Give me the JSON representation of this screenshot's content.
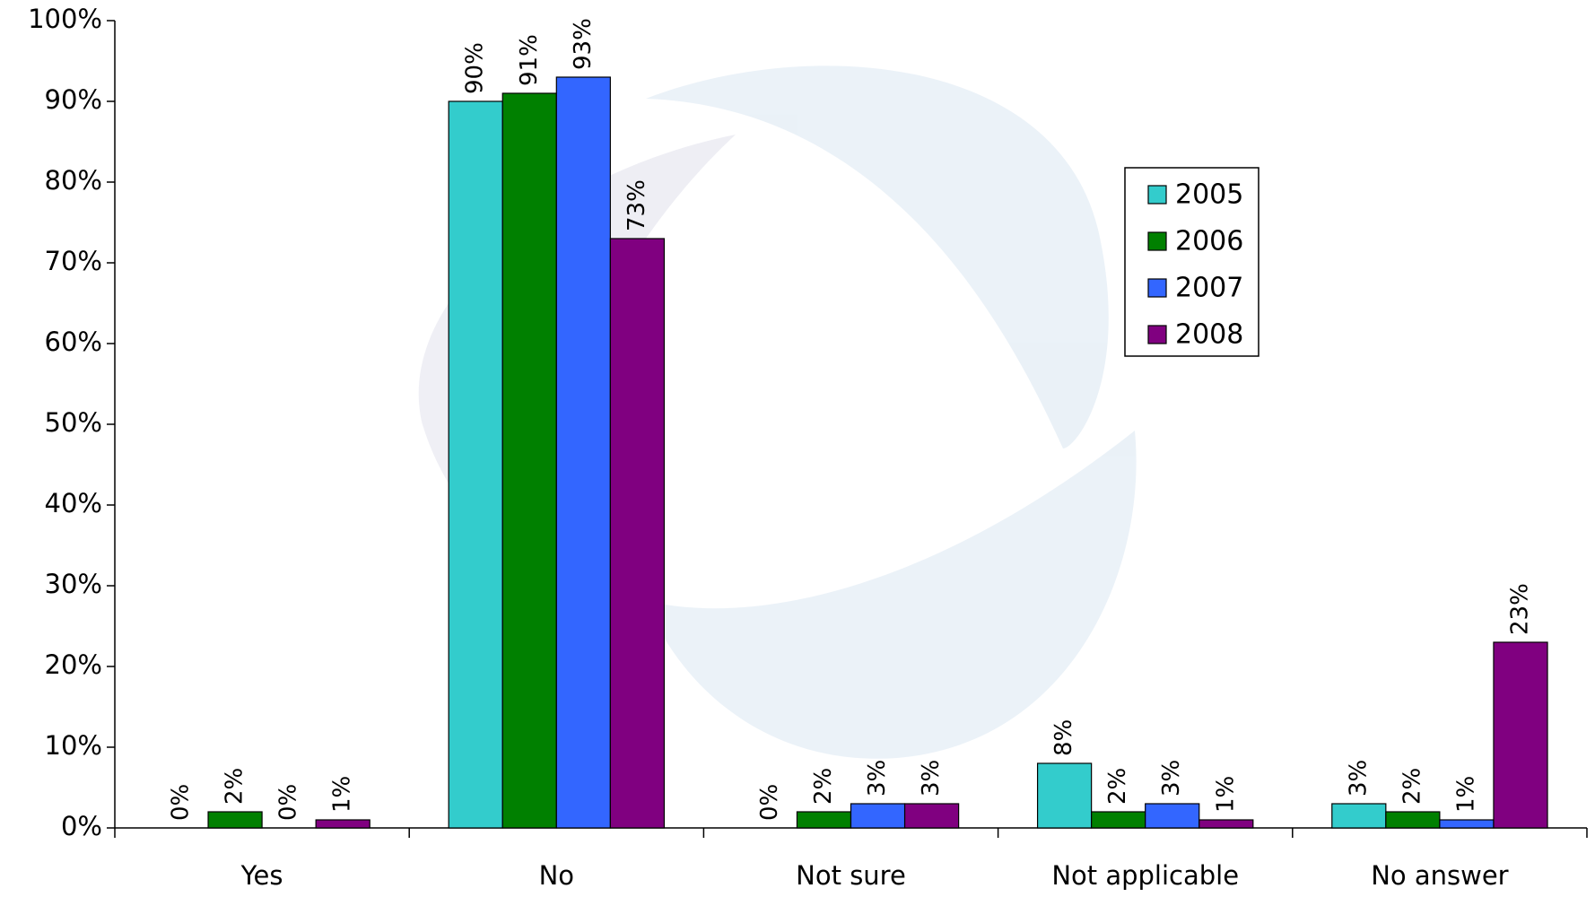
{
  "chart_data": {
    "type": "bar",
    "categories": [
      "Yes",
      "No",
      "Not sure",
      "Not applicable",
      "No answer"
    ],
    "series": [
      {
        "name": "2005",
        "color": "#33cccc",
        "values": [
          0,
          90,
          0,
          8,
          3
        ],
        "value_labels": [
          "0%",
          "90%",
          "0%",
          "8%",
          "3%"
        ]
      },
      {
        "name": "2006",
        "color": "#008000",
        "values": [
          2,
          91,
          2,
          2,
          2
        ],
        "value_labels": [
          "2%",
          "91%",
          "2%",
          "2%",
          "2%"
        ]
      },
      {
        "name": "2007",
        "color": "#3366ff",
        "values": [
          0,
          93,
          3,
          3,
          1
        ],
        "value_labels": [
          "0%",
          "93%",
          "3%",
          "3%",
          "1%"
        ]
      },
      {
        "name": "2008",
        "color": "#800080",
        "values": [
          1,
          73,
          3,
          1,
          23
        ],
        "value_labels": [
          "1%",
          "73%",
          "3%",
          "1%",
          "23%"
        ]
      }
    ],
    "ylim": [
      0,
      100
    ],
    "yticks": [
      {
        "value": 0,
        "label": "0%"
      },
      {
        "value": 10,
        "label": "10%"
      },
      {
        "value": 20,
        "label": "20%"
      },
      {
        "value": 30,
        "label": "30%"
      },
      {
        "value": 40,
        "label": "40%"
      },
      {
        "value": 50,
        "label": "50%"
      },
      {
        "value": 60,
        "label": "60%"
      },
      {
        "value": 70,
        "label": "70%"
      },
      {
        "value": 80,
        "label": "80%"
      },
      {
        "value": 90,
        "label": "90%"
      },
      {
        "value": 100,
        "label": "100%"
      }
    ],
    "legend": "upper-right"
  }
}
